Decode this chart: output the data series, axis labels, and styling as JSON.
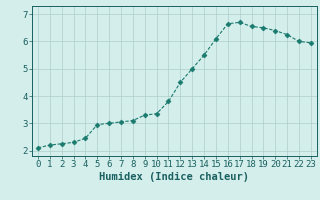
{
  "x": [
    0,
    1,
    2,
    3,
    4,
    5,
    6,
    7,
    8,
    9,
    10,
    11,
    12,
    13,
    14,
    15,
    16,
    17,
    18,
    19,
    20,
    21,
    22,
    23
  ],
  "y": [
    2.1,
    2.2,
    2.25,
    2.3,
    2.45,
    2.95,
    3.0,
    3.05,
    3.1,
    3.3,
    3.35,
    3.8,
    4.5,
    5.0,
    5.5,
    6.1,
    6.65,
    6.7,
    6.55,
    6.5,
    6.4,
    6.25,
    6.0,
    5.95
  ],
  "line_color": "#1a7a6e",
  "marker": "D",
  "marker_size": 2.5,
  "bg_color": "#d4eeeb",
  "grid_color": "#aecfcc",
  "axis_color": "#1a6060",
  "xlabel": "Humidex (Indice chaleur)",
  "xlabel_fontsize": 7.5,
  "tick_fontsize": 6.5,
  "ylim": [
    1.8,
    7.3
  ],
  "xlim": [
    -0.5,
    23.5
  ],
  "yticks": [
    2,
    3,
    4,
    5,
    6,
    7
  ],
  "xticks": [
    0,
    1,
    2,
    3,
    4,
    5,
    6,
    7,
    8,
    9,
    10,
    11,
    12,
    13,
    14,
    15,
    16,
    17,
    18,
    19,
    20,
    21,
    22,
    23
  ]
}
